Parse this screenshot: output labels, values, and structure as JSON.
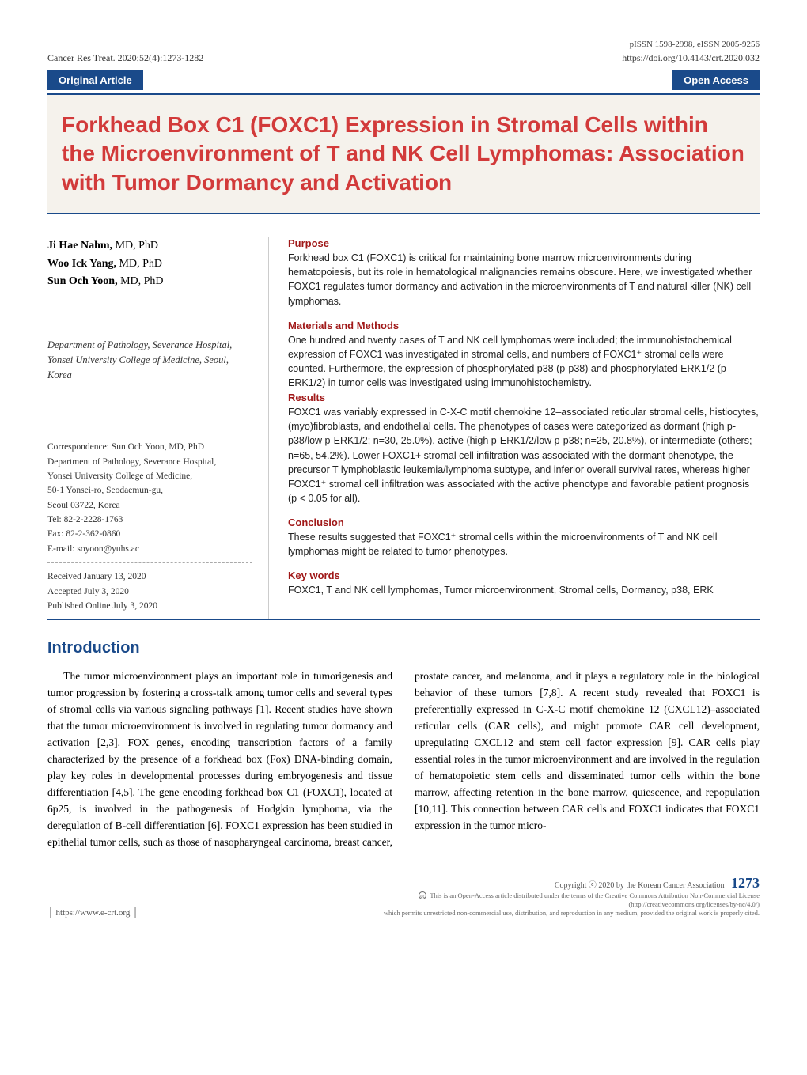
{
  "header": {
    "issn": "pISSN 1598-2998, eISSN 2005-9256",
    "journal": "Cancer Res Treat. 2020;52(4):1273-1282",
    "doi": "https://doi.org/10.4143/crt.2020.032",
    "badge_left": "Original Article",
    "badge_right": "Open Access"
  },
  "title": "Forkhead Box C1 (FOXC1) Expression in Stromal Cells within the Microenvironment of T and NK Cell Lymphomas: Association with Tumor Dormancy and Activation",
  "authors": [
    {
      "name": "Ji Hae Nahm,",
      "degree": "MD, PhD"
    },
    {
      "name": "Woo Ick Yang,",
      "degree": "MD, PhD"
    },
    {
      "name": "Sun Och Yoon,",
      "degree": "MD, PhD"
    }
  ],
  "affiliation": "Department of Pathology, Severance Hospital, Yonsei University College of Medicine, Seoul, Korea",
  "correspondence": {
    "line1": "Correspondence: Sun Och Yoon, MD, PhD",
    "line2": "Department of Pathology, Severance Hospital,",
    "line3": "Yonsei University College of Medicine,",
    "line4": "50-1 Yonsei-ro, Seodaemun-gu,",
    "line5": "Seoul 03722, Korea",
    "line6": "Tel: 82-2-2228-1763",
    "line7": "Fax: 82-2-362-0860",
    "line8": "E-mail: soyoon@yuhs.ac"
  },
  "dates": {
    "received": "Received  January 13, 2020",
    "accepted": "Accepted  July 3, 2020",
    "published": "Published Online  July 3, 2020"
  },
  "abstract": {
    "purpose": {
      "heading": "Purpose",
      "text": "Forkhead box C1 (FOXC1) is critical for maintaining bone marrow microenvironments during hematopoiesis, but its role in hematological malignancies remains obscure. Here, we investigated whether FOXC1 regulates tumor dormancy and activation in the microenvironments of T and natural killer (NK) cell lymphomas."
    },
    "methods": {
      "heading": "Materials and Methods",
      "text": "One hundred and twenty cases of T and NK cell lymphomas were included; the immunohistochemical expression of FOXC1 was investigated in stromal cells, and numbers of FOXC1⁺ stromal cells were counted. Furthermore, the expression of phosphorylated p38 (p-p38) and phosphorylated ERK1/2 (p-ERK1/2) in tumor cells was investigated using immunohistochemistry."
    },
    "results": {
      "heading": "Results",
      "text": "FOXC1 was variably expressed in C-X-C motif chemokine 12–associated reticular stromal cells, histiocytes, (myo)fibroblasts, and endothelial cells. The phenotypes of cases were categorized as dormant (high p-p38/low p-ERK1/2; n=30, 25.0%), active (high p-ERK1/2/low p-p38; n=25, 20.8%), or intermediate (others; n=65, 54.2%). Lower FOXC1+ stromal cell infiltration was associated with the dormant phenotype, the precursor T lymphoblastic leukemia/lymphoma subtype, and inferior overall survival rates, whereas higher FOXC1⁺ stromal cell infiltration was associated with the active phenotype and favorable patient prognosis (p < 0.05 for all)."
    },
    "conclusion": {
      "heading": "Conclusion",
      "text": "These results suggested that FOXC1⁺ stromal cells within the microenvironments of T and NK cell lymphomas might be related to tumor phenotypes."
    },
    "keywords": {
      "heading": "Key words",
      "text": "FOXC1, T and NK cell lymphomas, Tumor microenvironment, Stromal cells, Dormancy, p38, ERK"
    }
  },
  "intro": {
    "heading": "Introduction",
    "text": "The tumor microenvironment plays an important role in tumorigenesis and tumor progression by fostering a cross-talk among tumor cells and several types of stromal cells via various signaling pathways [1]. Recent studies have shown that the tumor microenvironment is involved in regulating tumor dormancy and activation [2,3]. FOX genes, encoding transcription factors of a family characterized by the presence of a forkhead box (Fox) DNA-binding domain, play key roles in developmental processes during embryogenesis and tissue differentiation [4,5]. The gene encoding forkhead box C1 (FOXC1), located at 6p25, is involved in the pathogenesis of Hodgkin lymphoma, via the deregulation of B-cell differentiation [6]. FOXC1 expression has been studied in epithelial tumor cells, such as those of nasopharyngeal carcinoma, breast cancer, prostate cancer, and melanoma, and it plays a regulatory role in the biological behavior of these tumors [7,8]. A recent study revealed that FOXC1 is preferentially expressed in C-X-C motif chemokine 12 (CXCL12)–associated reticular cells (CAR cells), and might promote CAR cell development, upregulating CXCL12 and stem cell factor expression [9]. CAR cells play essential roles in the tumor microenvironment and are involved in the regulation of hematopoietic stem cells and disseminated tumor cells within the bone marrow, affecting retention in the bone marrow, quiescence, and repopulation [10,11]. This connection between CAR cells and FOXC1 indicates that FOXC1 expression in the tumor micro-"
  },
  "footer": {
    "site": "│ https://www.e-crt.org │",
    "copyright": "Copyright ⓒ 2020 by  the Korean Cancer Association",
    "page": "1273",
    "license1": "This is an Open-Access article distributed under the terms of the Creative Commons Attribution Non-Commercial License (http://creativecommons.org/licenses/by-nc/4.0/)",
    "license2": "which permits unrestricted non-commercial use, distribution, and reproduction in any medium, provided the original work is properly cited."
  },
  "colors": {
    "badge_bg": "#1a4a8a",
    "title_color": "#d23a3a",
    "heading_color": "#a01818",
    "title_box_bg": "#f5f2ec"
  }
}
